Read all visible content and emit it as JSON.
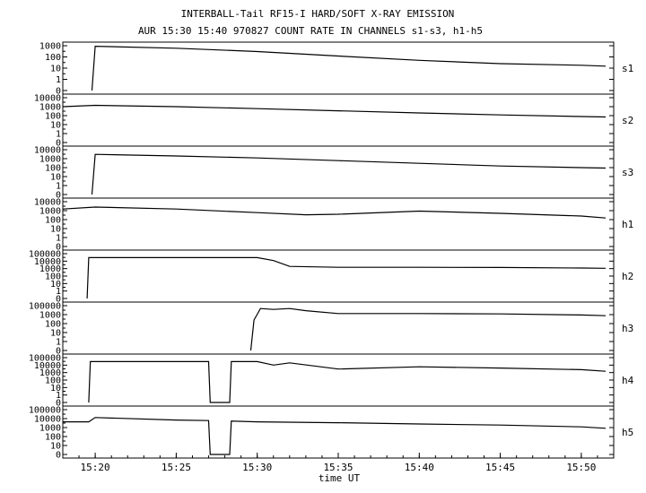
{
  "chart_data": {
    "type": "line",
    "title": "INTERBALL-Tail RF15-I HARD/SOFT X-RAY EMISSION",
    "subtitle": "AUR 15:30 15:40 970827  COUNT RATE IN CHANNELS s1-s3, h1-h5",
    "xlabel": "time UT",
    "x_ticks": [
      "15:20",
      "15:25",
      "15:30",
      "15:35",
      "15:40",
      "15:45",
      "15:50"
    ],
    "xlim": [
      "15:18",
      "15:52"
    ],
    "yscale": "log",
    "grid": false,
    "panels": [
      {
        "name": "s1",
        "y_ticks": [
          "1000",
          "100",
          "10",
          "1",
          "0"
        ],
        "series": {
          "x": [
            "15:19.8",
            "15:20",
            "15:25",
            "15:30",
            "15:35",
            "15:40",
            "15:45",
            "15:50",
            "15:51.5"
          ],
          "y": [
            0,
            900,
            600,
            300,
            120,
            50,
            25,
            18,
            15
          ]
        }
      },
      {
        "name": "s2",
        "y_ticks": [
          "10000",
          "1000",
          "100",
          "10",
          "1",
          "0"
        ],
        "series": {
          "x": [
            "15:18",
            "15:20",
            "15:25",
            "15:30",
            "15:35",
            "15:40",
            "15:45",
            "15:50",
            "15:51.5"
          ],
          "y": [
            1000,
            1400,
            1000,
            600,
            350,
            200,
            120,
            80,
            70
          ]
        }
      },
      {
        "name": "s3",
        "y_ticks": [
          "10000",
          "1000",
          "100",
          "10",
          "1",
          "0"
        ],
        "series": {
          "x": [
            "15:19.8",
            "15:20",
            "15:25",
            "15:30",
            "15:35",
            "15:40",
            "15:45",
            "15:50",
            "15:51.5"
          ],
          "y": [
            0,
            3000,
            2000,
            1200,
            600,
            300,
            150,
            100,
            90
          ]
        }
      },
      {
        "name": "h1",
        "y_ticks": [
          "10000",
          "1000",
          "100",
          "10",
          "1",
          "0"
        ],
        "series": {
          "x": [
            "15:18",
            "15:20",
            "15:25",
            "15:30",
            "15:33",
            "15:35",
            "15:40",
            "15:45",
            "15:50",
            "15:51.5"
          ],
          "y": [
            1500,
            2500,
            1500,
            600,
            350,
            400,
            900,
            500,
            250,
            150
          ]
        }
      },
      {
        "name": "h2",
        "y_ticks": [
          "100000",
          "10000",
          "1000",
          "100",
          "10",
          "1",
          "0"
        ],
        "series": {
          "x": [
            "15:19.5",
            "15:19.6",
            "15:25",
            "15:30",
            "15:31",
            "15:32",
            "15:35",
            "15:40",
            "15:45",
            "15:50",
            "15:51.5"
          ],
          "y": [
            0,
            30000,
            30000,
            30000,
            12000,
            2000,
            1500,
            1500,
            1400,
            1200,
            1100
          ]
        }
      },
      {
        "name": "h3",
        "y_ticks": [
          "100000",
          "1000",
          "100",
          "10",
          "1",
          "0"
        ],
        "series": {
          "x": [
            "15:29.6",
            "15:29.8",
            "15:30.2",
            "15:31",
            "15:32",
            "15:33",
            "15:35",
            "15:40",
            "15:45",
            "15:50",
            "15:51.5"
          ],
          "y": [
            0,
            1000,
            40000,
            30000,
            40000,
            20000,
            8000,
            8000,
            7000,
            5000,
            4000
          ]
        }
      },
      {
        "name": "h4",
        "y_ticks": [
          "100000",
          "10000",
          "1000",
          "100",
          "10",
          "1",
          "0"
        ],
        "series": {
          "x": [
            "15:19.6",
            "15:19.7",
            "15:27",
            "15:27.1",
            "15:28.3",
            "15:28.4",
            "15:30",
            "15:31",
            "15:32",
            "15:35",
            "15:40",
            "15:45",
            "15:50",
            "15:51.5"
          ],
          "y": [
            0,
            30000,
            30000,
            0,
            0,
            30000,
            30000,
            10000,
            20000,
            3000,
            6000,
            4000,
            2500,
            1500
          ]
        }
      },
      {
        "name": "h5",
        "y_ticks": [
          "100000",
          "10000",
          "1000",
          "100",
          "10",
          "0"
        ],
        "series": {
          "x": [
            "15:18",
            "15:19.6",
            "15:20",
            "15:25",
            "15:27",
            "15:27.1",
            "15:28.3",
            "15:28.4",
            "15:30",
            "15:35",
            "15:40",
            "15:45",
            "15:50",
            "15:51.5"
          ],
          "y": [
            2000,
            2000,
            8000,
            3500,
            3000,
            0,
            0,
            2500,
            2000,
            1500,
            1000,
            700,
            400,
            250
          ]
        }
      }
    ]
  }
}
